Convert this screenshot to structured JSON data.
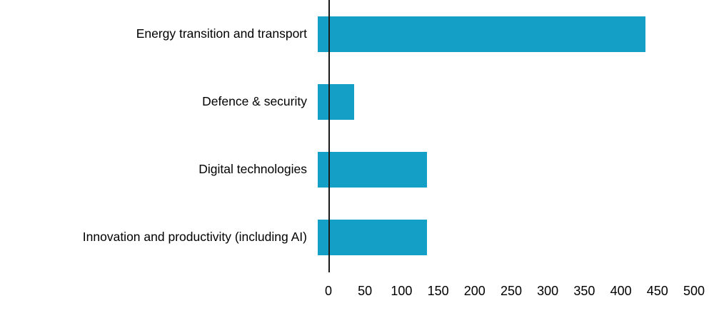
{
  "chart_data": {
    "type": "bar",
    "orientation": "horizontal",
    "title": "",
    "xlabel": "",
    "ylabel": "",
    "categories": [
      "Energy transition and transport",
      "Defence & security",
      "Digital technologies",
      "Innovation and productivity (including AI)"
    ],
    "values": [
      450,
      50,
      150,
      150
    ],
    "xlim": [
      0,
      500
    ],
    "xticks": [
      0,
      50,
      100,
      150,
      200,
      250,
      300,
      350,
      400,
      450,
      500
    ],
    "bar_color": "#149fc6",
    "axis_color": "#1a1a1a",
    "grid": false,
    "legend": false
  }
}
